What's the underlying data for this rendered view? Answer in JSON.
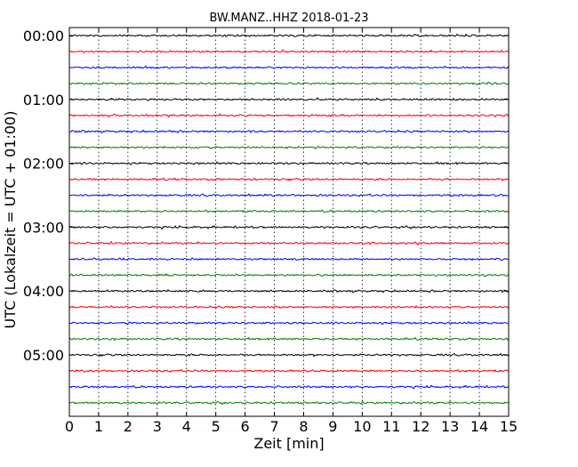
{
  "chart_data": {
    "type": "line",
    "title": "BW.MANZ..HHZ 2018-01-23",
    "xlabel": "Zeit  [min]",
    "ylabel": "UTC (Lokalzeit = UTC + 01:00)",
    "xlim": [
      0,
      15
    ],
    "x_ticks": [
      "0",
      "1",
      "2",
      "3",
      "4",
      "5",
      "6",
      "7",
      "8",
      "9",
      "10",
      "11",
      "12",
      "13",
      "14",
      "15"
    ],
    "y_tick_labels": [
      "00:00",
      "01:00",
      "02:00",
      "03:00",
      "04:00",
      "05:00"
    ],
    "row_minutes": 15,
    "rows": 24,
    "row_start_times": [
      "00:00",
      "00:15",
      "00:30",
      "00:45",
      "01:00",
      "01:15",
      "01:30",
      "01:45",
      "02:00",
      "02:15",
      "02:30",
      "02:45",
      "03:00",
      "03:15",
      "03:30",
      "03:45",
      "04:00",
      "04:15",
      "04:30",
      "04:45",
      "05:00",
      "05:15",
      "05:30",
      "05:45"
    ],
    "color_cycle": [
      "#000000",
      "#ff0000",
      "#0000ff",
      "#008000"
    ],
    "grid": "x-dotted",
    "legend": "none"
  }
}
